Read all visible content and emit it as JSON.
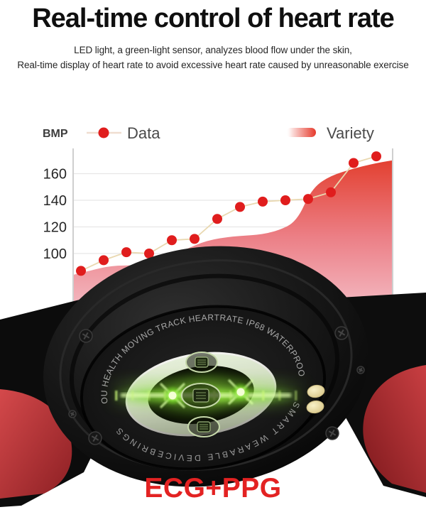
{
  "header": {
    "title": "Real-time control of heart rate",
    "subtitle_line1": "LED light, a green-light sensor, analyzes blood flow under the skin,",
    "subtitle_line2": "Real-time display of heart rate to avoid excessive heart rate caused by unreasonable exercise"
  },
  "chart": {
    "axis_label": "BMP",
    "legend": {
      "data_label": "Data",
      "variety_label": "Variety"
    }
  },
  "chart_data": {
    "type": "combo: scatter-line over area",
    "title": "",
    "ylabel": "BMP",
    "yticks": [
      160,
      140,
      120,
      100
    ],
    "ylim": [
      60,
      185
    ],
    "grid": true,
    "legend_position": "top",
    "x_axis": {
      "tick_labels_visible": false,
      "n_points": 14
    },
    "series": [
      {
        "name": "Data",
        "type": "scatter-line",
        "values": [
          87,
          95,
          101,
          100,
          110,
          111,
          126,
          135,
          139,
          140,
          141,
          146,
          168,
          173
        ]
      },
      {
        "name": "Variety",
        "type": "area",
        "points": [
          [
            0.0,
            84
          ],
          [
            0.05,
            87
          ],
          [
            0.12,
            91
          ],
          [
            0.2,
            91
          ],
          [
            0.28,
            95
          ],
          [
            0.35,
            103
          ],
          [
            0.42,
            110
          ],
          [
            0.5,
            113
          ],
          [
            0.58,
            114
          ],
          [
            0.64,
            117
          ],
          [
            0.7,
            124
          ],
          [
            0.745,
            148
          ],
          [
            0.8,
            158
          ],
          [
            0.88,
            164
          ],
          [
            0.95,
            168
          ],
          [
            1.0,
            170
          ]
        ]
      }
    ],
    "colors": {
      "dot": "#e01d1d",
      "line": "#e9d8b0",
      "area_top": "#e23a28",
      "area_mid": "#ec8087",
      "area_bottom": "#f7d4de"
    }
  },
  "watch": {
    "ring_text_top": "YOU HEALTH MOVING TRACK HEARTRATE IP68 WATERPROOF",
    "ring_text_bottom": "SMART WEARABLE DEVICEBRINGS",
    "accent_red": "#b63032",
    "glow_green": "#86e02f",
    "pin_gold": "#ede1a8"
  },
  "footer": {
    "caption": "ECG+PPG",
    "color": "#e32222"
  }
}
